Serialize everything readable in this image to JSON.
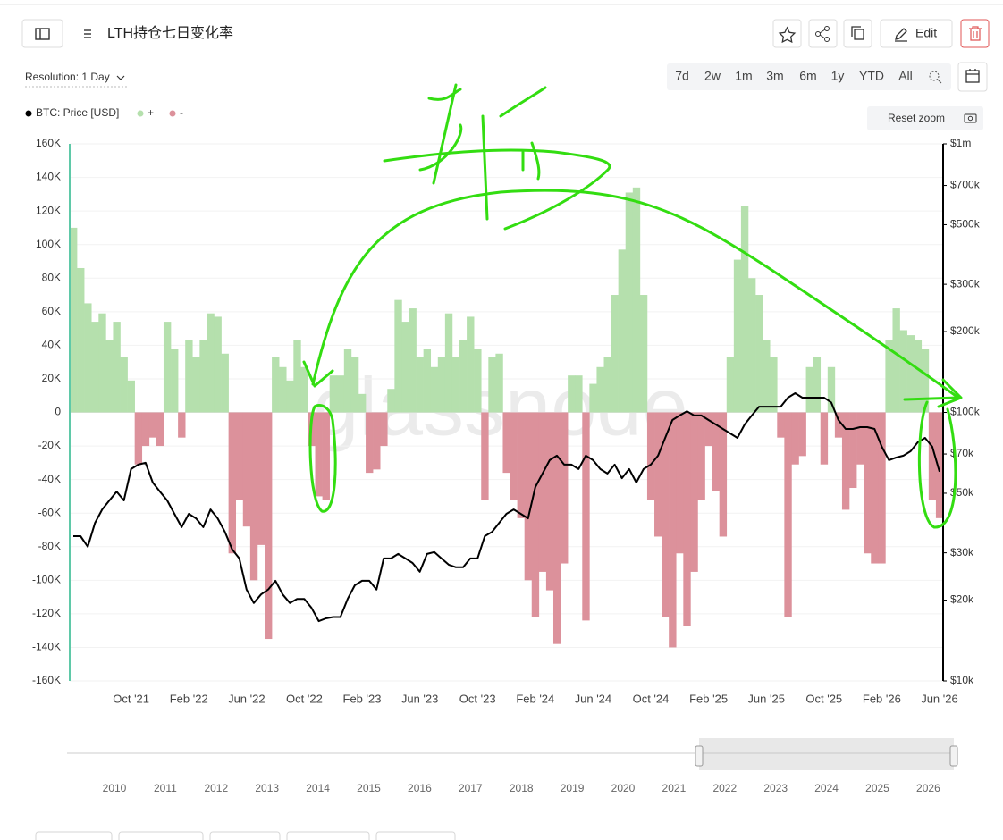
{
  "ui": {
    "edit": "Edit",
    "resolution": "Resolution: 1 Day",
    "ranges": [
      "7d",
      "2w",
      "1m",
      "3m",
      "6m",
      "1y",
      "YTD",
      "All"
    ],
    "reset_zoom": "Reset zoom",
    "navigator_years": [
      2010,
      2011,
      2012,
      2013,
      2014,
      2015,
      2016,
      2017,
      2018,
      2019,
      2020,
      2021,
      2022,
      2023,
      2024,
      2025,
      2026
    ]
  },
  "chart_data": {
    "type": "bar",
    "title": "LTH持仓七日变化率",
    "watermark": "glassnode",
    "categories": [
      null,
      null,
      null,
      null,
      null,
      null,
      null,
      null,
      "Oct '21",
      null,
      null,
      null,
      null,
      null,
      null,
      null,
      "Feb '22",
      null,
      null,
      null,
      null,
      null,
      null,
      null,
      "Jun '22",
      null,
      null,
      null,
      null,
      null,
      null,
      null,
      "Oct '22",
      null,
      null,
      null,
      null,
      null,
      null,
      null,
      "Feb '23",
      null,
      null,
      null,
      null,
      null,
      null,
      null,
      "Jun '23",
      null,
      null,
      null,
      null,
      null,
      null,
      null,
      "Oct '23",
      null,
      null,
      null,
      null,
      null,
      null,
      null,
      "Feb '24",
      null,
      null,
      null,
      null,
      null,
      null,
      null,
      "Jun '24",
      null,
      null,
      null,
      null,
      null,
      null,
      null,
      "Oct '24",
      null,
      null,
      null,
      null,
      null,
      null,
      null,
      "Feb '25",
      null,
      null,
      null,
      null,
      null,
      null,
      null,
      "Jun '25",
      null,
      null,
      null,
      null,
      null,
      null,
      null,
      "Oct '25",
      null,
      null,
      null,
      null,
      null,
      null,
      null,
      "Feb '26",
      null,
      null,
      null,
      null,
      null,
      null,
      null,
      "Jun '26"
    ],
    "series": [
      {
        "name": "BTC: Price [USD]",
        "type": "line",
        "axis": "y2",
        "color": "#000000",
        "values": [
          34600,
          34600,
          31600,
          38800,
          43500,
          47000,
          50700,
          47000,
          61500,
          63900,
          64900,
          54800,
          50700,
          47000,
          41900,
          37400,
          41900,
          40300,
          37400,
          43500,
          40300,
          35900,
          30900,
          28600,
          21900,
          19500,
          21000,
          21900,
          23600,
          21000,
          19500,
          20200,
          20200,
          18700,
          16700,
          17100,
          17300,
          17300,
          20200,
          22700,
          23600,
          23600,
          21900,
          28600,
          28600,
          29700,
          28600,
          27500,
          25500,
          29700,
          30200,
          28600,
          27100,
          26500,
          26500,
          28600,
          28600,
          34600,
          35900,
          38800,
          41900,
          43500,
          41900,
          40300,
          52700,
          59200,
          66400,
          69000,
          63900,
          63900,
          61500,
          69000,
          66400,
          61500,
          59200,
          63900,
          56900,
          61500,
          54800,
          61500,
          63900,
          69000,
          80400,
          93700,
          97400,
          101000,
          97400,
          97400,
          93700,
          90200,
          86800,
          83500,
          80400,
          90200,
          97400,
          105000,
          105000,
          105000,
          105000,
          113500,
          117900,
          113500,
          113500,
          113500,
          113500,
          109000,
          93700,
          86800,
          86800,
          88100,
          88100,
          86800,
          74500,
          66400,
          67900,
          69000,
          71700,
          77400,
          80400,
          74500,
          60100
        ]
      },
      {
        "name": "+",
        "type": "bar",
        "color": "#b5e0ad",
        "values": [
          110000,
          86000,
          65000,
          54000,
          59000,
          43000,
          54000,
          33000,
          19000,
          null,
          null,
          null,
          null,
          54000,
          38000,
          null,
          43000,
          33000,
          43000,
          59000,
          57000,
          35000,
          null,
          null,
          null,
          null,
          null,
          null,
          33000,
          27000,
          19000,
          43000,
          27000,
          null,
          null,
          null,
          22000,
          22000,
          38000,
          33000,
          11000,
          null,
          null,
          null,
          14000,
          67000,
          54000,
          62000,
          33000,
          38000,
          27000,
          33000,
          59000,
          33000,
          43000,
          57000,
          38000,
          null,
          33000,
          35000,
          null,
          null,
          null,
          null,
          null,
          null,
          null,
          null,
          null,
          22000,
          22000,
          null,
          17000,
          27000,
          33000,
          70000,
          97000,
          131000,
          134000,
          70000,
          null,
          null,
          null,
          null,
          null,
          null,
          null,
          null,
          null,
          null,
          null,
          33000,
          91000,
          123000,
          80000,
          70000,
          43000,
          33000,
          null,
          null,
          null,
          null,
          27000,
          33000,
          null,
          27000,
          null,
          null,
          null,
          null,
          null,
          null,
          null,
          43000,
          62000,
          49000,
          46000,
          43000,
          38000,
          null,
          null
        ]
      },
      {
        "name": "-",
        "type": "bar",
        "color": "#dc919b",
        "values": [
          null,
          null,
          null,
          null,
          null,
          null,
          null,
          null,
          null,
          -31000,
          -20000,
          -15000,
          -20000,
          null,
          null,
          -15000,
          null,
          null,
          null,
          null,
          null,
          null,
          -84000,
          -52000,
          -68000,
          -100000,
          -79000,
          -135000,
          null,
          null,
          null,
          null,
          null,
          -20000,
          -50000,
          -52000,
          null,
          null,
          null,
          null,
          null,
          -36000,
          -34000,
          -20000,
          null,
          null,
          null,
          null,
          null,
          null,
          null,
          null,
          null,
          null,
          null,
          null,
          null,
          -52000,
          null,
          null,
          -36000,
          -52000,
          -63000,
          -100000,
          -122000,
          -95000,
          -106000,
          -138000,
          -90000,
          null,
          null,
          -124000,
          null,
          null,
          null,
          null,
          null,
          null,
          null,
          null,
          -52000,
          -74000,
          -122000,
          -140000,
          -84000,
          -127000,
          -95000,
          -52000,
          -20000,
          -47000,
          -74000,
          null,
          null,
          null,
          null,
          null,
          null,
          null,
          -15000,
          -122000,
          -31000,
          -26000,
          null,
          null,
          -31000,
          null,
          -15000,
          -58000,
          -45000,
          -31000,
          -84000,
          -90000,
          -90000,
          null,
          null,
          null,
          null,
          null,
          null,
          -52000,
          -63000
        ]
      }
    ],
    "ylim": [
      -160000,
      160000
    ],
    "yticks": [
      {
        "value": 160000,
        "label": "160K"
      },
      {
        "value": 140000,
        "label": "140K"
      },
      {
        "value": 120000,
        "label": "120K"
      },
      {
        "value": 100000,
        "label": "100K"
      },
      {
        "value": 80000,
        "label": "80K"
      },
      {
        "value": 60000,
        "label": "60K"
      },
      {
        "value": 40000,
        "label": "40K"
      },
      {
        "value": 20000,
        "label": "20K"
      },
      0,
      {
        "value": -20000,
        "label": "-20K"
      },
      {
        "value": -40000,
        "label": "-40K"
      },
      {
        "value": -60000,
        "label": "-60K"
      },
      {
        "value": -80000,
        "label": "-80K"
      },
      {
        "value": -100000,
        "label": "-100K"
      },
      {
        "value": -120000,
        "label": "-120K"
      },
      {
        "value": -140000,
        "label": "-140K"
      },
      {
        "value": -160000,
        "label": "-160K"
      }
    ],
    "y2lim": [
      10000,
      1000000
    ],
    "y2log": true,
    "y2ticks": [
      {
        "value": 1000000,
        "label": "$1m"
      },
      {
        "value": 700000,
        "label": "$700k"
      },
      {
        "value": 500000,
        "label": "$500k"
      },
      {
        "value": 300000,
        "label": "$300k"
      },
      {
        "value": 200000,
        "label": "$200k"
      },
      {
        "value": 100000,
        "label": "$100k"
      },
      {
        "value": 70000,
        "label": "$70k"
      },
      {
        "value": 50000,
        "label": "$50k"
      },
      {
        "value": 30000,
        "label": "$30k"
      },
      {
        "value": 20000,
        "label": "$20k"
      },
      {
        "value": 10000,
        "label": "$10k"
      }
    ],
    "grid": true,
    "legend": "top-left"
  }
}
